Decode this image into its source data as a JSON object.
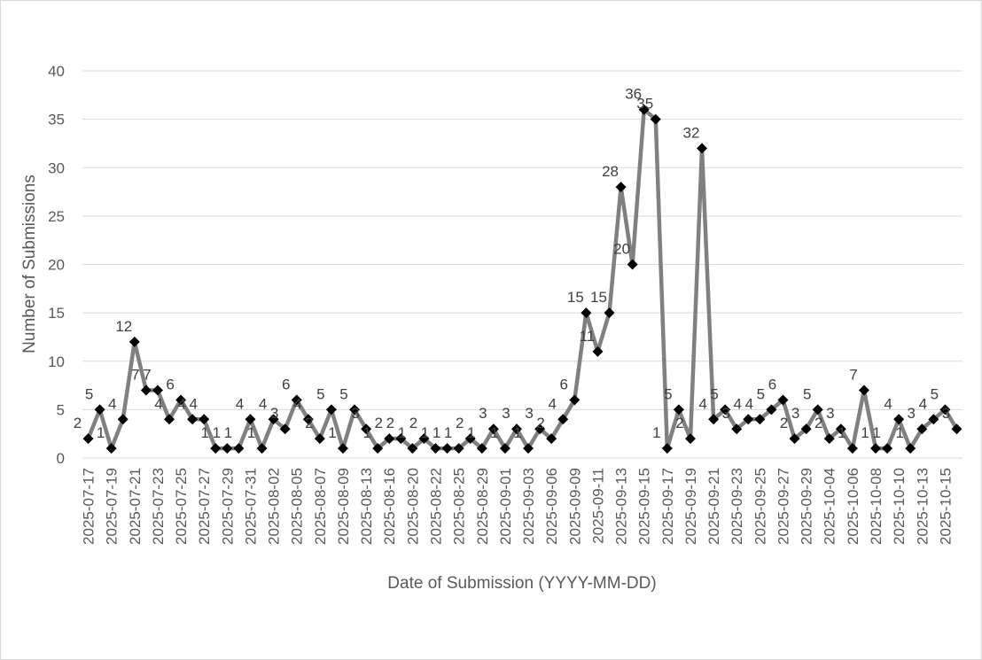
{
  "chart_data": {
    "type": "line",
    "title": "",
    "xlabel": "Date of Submission (YYYY-MM-DD)",
    "ylabel": "Number of Submissions",
    "ylim": [
      0,
      40
    ],
    "yticks": [
      0,
      5,
      10,
      15,
      20,
      25,
      30,
      35,
      40
    ],
    "grid": "horizontal",
    "legend": "none",
    "x_tick_labels": [
      "2025-07-17",
      "2025-07-19",
      "2025-07-21",
      "2025-07-23",
      "2025-07-25",
      "2025-07-27",
      "2025-07-29",
      "2025-07-31",
      "2025-08-02",
      "2025-08-05",
      "2025-08-07",
      "2025-08-09",
      "2025-08-13",
      "2025-08-16",
      "2025-08-20",
      "2025-08-22",
      "2025-08-25",
      "2025-08-29",
      "2025-09-01",
      "2025-09-03",
      "2025-09-06",
      "2025-09-09",
      "2025-09-11",
      "2025-09-13",
      "2025-09-15",
      "2025-09-17",
      "2025-09-19",
      "2025-09-21",
      "2025-09-23",
      "2025-09-25",
      "2025-09-27",
      "2025-09-29",
      "2025-10-04",
      "2025-10-06",
      "2025-10-08",
      "2025-10-10",
      "2025-10-13",
      "2025-10-15"
    ],
    "series": [
      {
        "color": "#808080",
        "marker_color": "#000000",
        "marker": "diamond",
        "values": [
          2,
          5,
          1,
          4,
          12,
          7,
          7,
          4,
          6,
          4,
          4,
          1,
          1,
          1,
          4,
          1,
          4,
          3,
          6,
          4,
          2,
          5,
          1,
          5,
          3,
          1,
          2,
          2,
          1,
          2,
          1,
          1,
          1,
          2,
          1,
          3,
          1,
          3,
          1,
          3,
          2,
          4,
          6,
          15,
          11,
          15,
          28,
          20,
          36,
          35,
          1,
          5,
          2,
          32,
          4,
          5,
          3,
          4,
          4,
          5,
          6,
          2,
          3,
          5,
          2,
          3,
          1,
          7,
          1,
          1,
          4,
          1,
          3,
          4,
          5,
          3
        ]
      }
    ]
  }
}
